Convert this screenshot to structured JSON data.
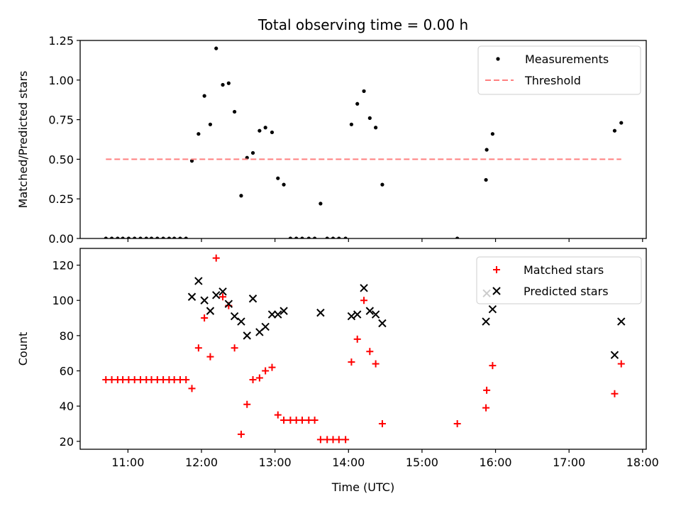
{
  "chart_data": [
    {
      "type": "scatter",
      "title": "Total observing time = 0.00 h",
      "xlabel": "",
      "ylabel": "Matched/Predicted stars",
      "xlim": [
        10.35,
        18.05
      ],
      "ylim": [
        0,
        1.25
      ],
      "yticks": [
        0,
        0.25,
        0.5,
        0.75,
        1.0,
        1.25
      ],
      "ytick_labels": [
        "0.00",
        "0.25",
        "0.50",
        "0.75",
        "1.00",
        "1.25"
      ],
      "xticks": [
        11,
        12,
        13,
        14,
        15,
        16,
        17,
        18
      ],
      "show_xtick_labels": false,
      "legend_position": "top-right",
      "series": [
        {
          "name": "Measurements",
          "marker": "dot",
          "color": "#000000",
          "x": [
            10.7,
            10.78,
            10.86,
            10.93,
            11.01,
            11.09,
            11.17,
            11.25,
            11.32,
            11.4,
            11.48,
            11.56,
            11.63,
            11.71,
            11.79,
            11.87,
            11.96,
            12.04,
            12.12,
            12.2,
            12.29,
            12.37,
            12.45,
            12.54,
            12.62,
            12.7,
            12.79,
            12.87,
            12.96,
            13.04,
            13.12,
            13.21,
            13.29,
            13.37,
            13.46,
            13.54,
            13.62,
            13.71,
            13.79,
            13.87,
            13.96,
            14.04,
            14.12,
            14.21,
            14.29,
            14.37,
            14.46,
            15.48,
            15.87,
            15.88,
            15.96,
            17.62,
            17.71
          ],
          "y": [
            0,
            0,
            0,
            0,
            0,
            0,
            0,
            0,
            0,
            0,
            0,
            0,
            0,
            0,
            0,
            0.49,
            0.66,
            0.9,
            0.72,
            1.2,
            0.97,
            0.98,
            0.8,
            0.27,
            0.51,
            0.54,
            0.68,
            0.7,
            0.67,
            0.38,
            0.34,
            0,
            0,
            0,
            0,
            0,
            0.22,
            0,
            0,
            0,
            0,
            0.72,
            0.85,
            0.93,
            0.76,
            0.7,
            0.34,
            0,
            0.37,
            0.56,
            0.66,
            0.68,
            0.73
          ]
        },
        {
          "name": "Threshold",
          "marker": "dashed-line",
          "color": "#ff8080",
          "x": [
            10.7,
            17.71
          ],
          "y": [
            0.5,
            0.5
          ]
        }
      ]
    },
    {
      "type": "scatter",
      "title": "",
      "xlabel": "Time (UTC)",
      "ylabel": "Count",
      "xlim": [
        10.35,
        18.05
      ],
      "ylim": [
        15.5,
        129.5
      ],
      "yticks": [
        20,
        40,
        60,
        80,
        100,
        120
      ],
      "ytick_labels": [
        "20",
        "40",
        "60",
        "80",
        "100",
        "120"
      ],
      "xticks": [
        11,
        12,
        13,
        14,
        15,
        16,
        17,
        18
      ],
      "xtick_labels": [
        "11:00",
        "12:00",
        "13:00",
        "14:00",
        "15:00",
        "16:00",
        "17:00",
        "18:00"
      ],
      "legend_position": "top-right",
      "series": [
        {
          "name": "Matched stars",
          "marker": "plus",
          "color": "#ff0000",
          "x": [
            10.7,
            10.78,
            10.86,
            10.93,
            11.01,
            11.09,
            11.17,
            11.25,
            11.32,
            11.4,
            11.48,
            11.56,
            11.63,
            11.71,
            11.79,
            11.87,
            11.96,
            12.04,
            12.12,
            12.2,
            12.29,
            12.37,
            12.45,
            12.54,
            12.62,
            12.7,
            12.79,
            12.87,
            12.96,
            13.04,
            13.12,
            13.21,
            13.29,
            13.37,
            13.46,
            13.54,
            13.62,
            13.71,
            13.79,
            13.87,
            13.96,
            14.04,
            14.12,
            14.21,
            14.29,
            14.37,
            14.46,
            15.48,
            15.87,
            15.88,
            15.96,
            17.62,
            17.71
          ],
          "y": [
            55,
            55,
            55,
            55,
            55,
            55,
            55,
            55,
            55,
            55,
            55,
            55,
            55,
            55,
            55,
            50,
            73,
            90,
            68,
            124,
            102,
            97,
            73,
            24,
            41,
            55,
            56,
            60,
            62,
            35,
            32,
            32,
            32,
            32,
            32,
            32,
            21,
            21,
            21,
            21,
            21,
            65,
            78,
            100,
            71,
            64,
            30,
            30,
            39,
            49,
            63,
            47,
            64
          ]
        },
        {
          "name": "Predicted stars",
          "marker": "x",
          "color": "#000000",
          "x": [
            11.87,
            11.96,
            12.04,
            12.12,
            12.2,
            12.29,
            12.37,
            12.45,
            12.54,
            12.62,
            12.7,
            12.79,
            12.87,
            12.96,
            13.04,
            13.12,
            13.62,
            14.04,
            14.12,
            14.21,
            14.29,
            14.37,
            14.46,
            15.87,
            15.88,
            15.96,
            17.62,
            17.71
          ],
          "y": [
            102,
            111,
            100,
            94,
            103,
            105,
            98,
            91,
            88,
            80,
            101,
            82,
            85,
            92,
            92,
            94,
            93,
            91,
            92,
            107,
            94,
            92,
            87,
            88,
            104,
            95,
            69,
            88
          ]
        }
      ]
    }
  ]
}
